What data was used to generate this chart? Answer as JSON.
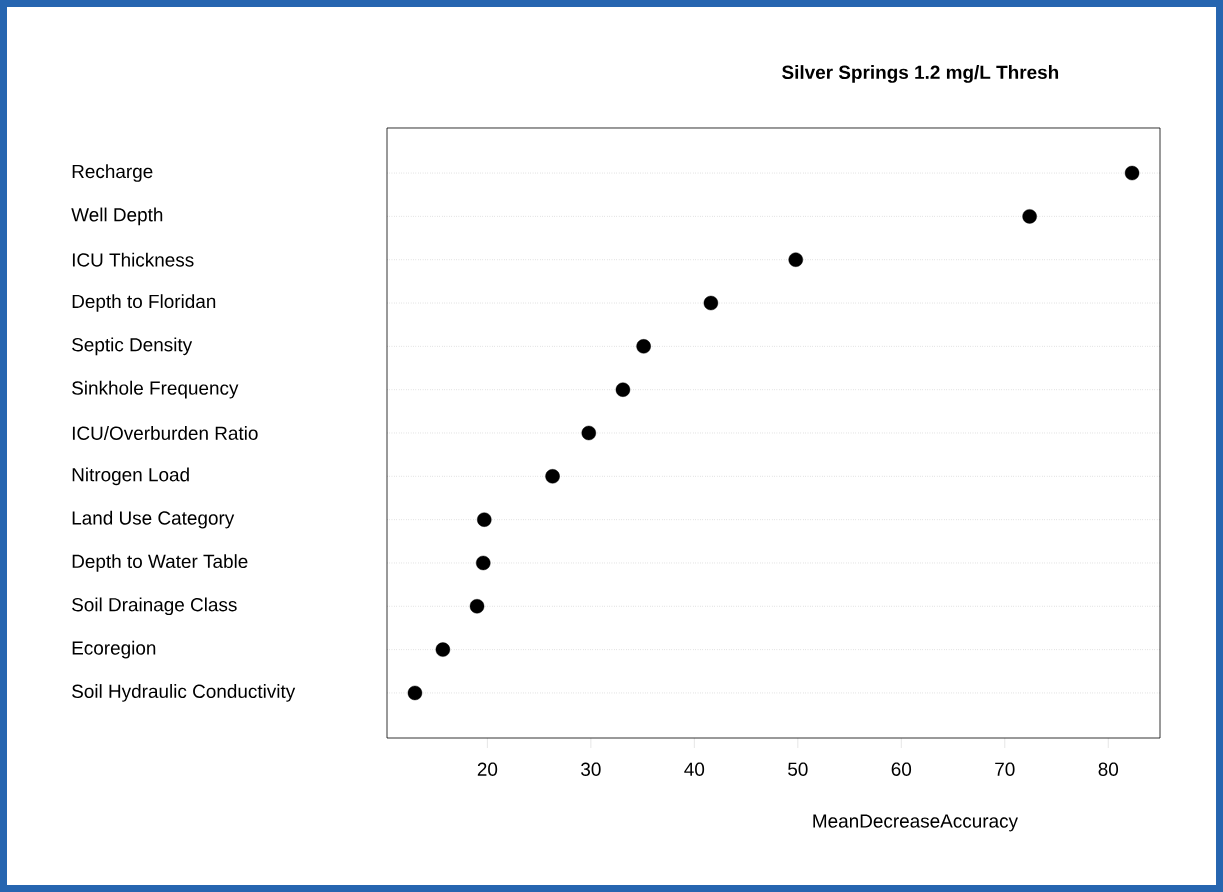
{
  "chart_data": {
    "type": "scatter",
    "title": "Silver Springs 1.2 mg/L Thresh",
    "xlabel": "MeanDecreaseAccuracy",
    "categories": [
      "Recharge",
      "Well Depth",
      "ICU Thickness",
      "Depth to Floridan",
      "Septic Density",
      "Sinkhole Frequency",
      "ICU/Overburden Ratio",
      "Nitrogen Load",
      "Land Use Category",
      "Depth to Water Table",
      "Soil Drainage Class",
      "Ecoregion",
      "Soil Hydraulic Conductivity"
    ],
    "orientation": "horizontal",
    "values": [
      82.3,
      72.4,
      49.8,
      41.6,
      35.1,
      33.1,
      29.8,
      26.3,
      19.7,
      19.6,
      19.0,
      15.7,
      13.0
    ],
    "color": "#000000",
    "grid": "y",
    "xlim": [
      10.3,
      85.0
    ],
    "xticks": [
      20,
      30,
      40,
      50,
      60,
      70,
      80
    ]
  }
}
